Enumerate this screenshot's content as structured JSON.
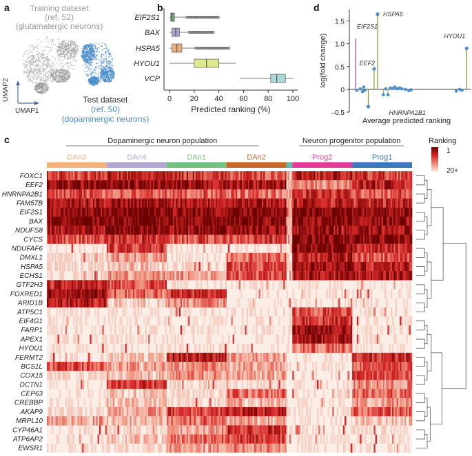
{
  "panel_letters": {
    "a": "a",
    "b": "b",
    "c": "c",
    "d": "d"
  },
  "colors": {
    "gray": "#9a9a9a",
    "blue": "#4a8ecb",
    "box_green": "#6aab78",
    "box_purple": "#a9a2cf",
    "box_orange": "#e8b07e",
    "box_yellow": "#dde88c",
    "box_cyan": "#a9dad9",
    "hsp_line": "#8a9a3a",
    "eif_line": "#e0457b",
    "heat_high": "#6b0000",
    "heat_low": "#faeee6"
  },
  "panel_a": {
    "training_label": "Training dataset",
    "training_ref": "(ref. 52)",
    "training_desc": "(glutamatergic neurons)",
    "test_label": "Test dataset",
    "test_ref": "(ref. 50)",
    "test_desc": "(dopaminergic neurons)",
    "umap1": "UMAP1",
    "umap2": "UMAP2"
  },
  "chart_data": [
    {
      "type": "box",
      "panel": "b",
      "title": "",
      "xlabel": "Predicted ranking (%)",
      "xlim": [
        -5,
        105
      ],
      "xticks": [
        "0",
        "20",
        "40",
        "60",
        "80",
        "100"
      ],
      "tick_values": [
        0,
        20,
        40,
        60,
        80,
        100
      ],
      "genes": [
        {
          "name": "EIF2S1",
          "min": 0,
          "q1": 1,
          "median": 2,
          "q3": 4,
          "max": 14,
          "outliers_to": 40
        },
        {
          "name": "BAX",
          "min": 0,
          "q1": 2,
          "median": 5,
          "q3": 8,
          "max": 16,
          "outliers_to": 36
        },
        {
          "name": "HSPA5",
          "min": 0,
          "q1": 2,
          "median": 6,
          "q3": 10,
          "max": 21,
          "outliers_to": 49
        },
        {
          "name": "HYOU1",
          "min": 0,
          "q1": 20,
          "median": 30,
          "q3": 40,
          "max": 54,
          "outliers_to": null
        },
        {
          "name": "VCP",
          "min": 57,
          "q1": 82,
          "median": 87,
          "q3": 94,
          "max": 100,
          "outliers_to": 57
        }
      ]
    },
    {
      "type": "scatter",
      "panel": "d",
      "xlabel": "Average predicted ranking",
      "ylabel": "log(fold change)",
      "ylim": [
        -0.5,
        1.75
      ],
      "yticks": [
        "1.5",
        "1.0",
        "0.5",
        "0",
        "–0.5"
      ],
      "ytick_values": [
        1.5,
        1.0,
        0.5,
        0,
        -0.5
      ],
      "xlim": [
        0,
        100
      ],
      "labeled_points": [
        {
          "gene": "EIF2S1",
          "x": 3,
          "y": 1.12
        },
        {
          "gene": "EEF2",
          "x": 19,
          "y": 0.45
        },
        {
          "gene": "HSPA5",
          "x": 22,
          "y": 1.65
        },
        {
          "gene": "HNRNPA2B1",
          "x": 14,
          "y": -0.38
        },
        {
          "gene": "HYOU1",
          "x": 99,
          "y": 0.9
        }
      ],
      "other_points": [
        [
          4,
          -0.02
        ],
        [
          7,
          0.01
        ],
        [
          9,
          -0.05
        ],
        [
          10,
          0.05
        ],
        [
          11,
          -0.02
        ],
        [
          27,
          -0.12
        ],
        [
          29,
          0.01
        ],
        [
          31,
          -0.12
        ],
        [
          33,
          0.03
        ],
        [
          35,
          0.02
        ],
        [
          37,
          0.05
        ],
        [
          39,
          0.01
        ],
        [
          41,
          0.03
        ],
        [
          43,
          0.01
        ],
        [
          46,
          0.0
        ],
        [
          49,
          -0.03
        ],
        [
          51,
          -0.01
        ],
        [
          90,
          -0.04
        ],
        [
          93,
          0.0
        ],
        [
          95,
          -0.02
        ]
      ]
    },
    {
      "type": "heatmap",
      "panel": "c",
      "colorbar_title": "Ranking",
      "colorbar_top": "1",
      "colorbar_bottom": "20+",
      "groups": [
        {
          "label": "Dopaminergic neuron population",
          "clusters": [
            "DAn3",
            "DAn4",
            "DAn1",
            "DAn2"
          ]
        },
        {
          "label": "Neuron progenitor population",
          "clusters": [
            "Prog2",
            "Prog1"
          ]
        }
      ],
      "clusters": [
        {
          "name": "DAn3",
          "color": "#f2b27c"
        },
        {
          "name": "DAn4",
          "color": "#b3a6d2"
        },
        {
          "name": "DAn1",
          "color": "#74c083"
        },
        {
          "name": "DAn2",
          "color": "#c8692c"
        },
        {
          "name": "Prog2",
          "color": "#e43a9a"
        },
        {
          "name": "Prog1",
          "color": "#3b78be"
        }
      ],
      "cluster_units": [
        20,
        20,
        20,
        20,
        2,
        20,
        20
      ],
      "genes": [
        "FOXC1",
        "EEF2",
        "HNRNPA2B1",
        "FAM57B",
        "EIF2S1",
        "BAX",
        "NDUFS8",
        "CYCS",
        "NDUFAF6",
        "DMXL1",
        "HSPA5",
        "ECHS1",
        "GTF2H3",
        "FOXRED1",
        "ARID1B",
        "ATP5C1",
        "EIF4G1",
        "FARP1",
        "APEX1",
        "HYOU1",
        "FERMT2",
        "BCS1L",
        "COX15",
        "DCTN1",
        "CEP63",
        "CREBBP",
        "AKAP9",
        "MRPL10",
        "CYP46A1",
        "ATP6AP2",
        "EWSR1"
      ],
      "intensity": [
        [
          0.6,
          0.7,
          0.65,
          0.55,
          0.2,
          0.75,
          0.6
        ],
        [
          0.85,
          0.85,
          0.8,
          0.8,
          0.3,
          0.35,
          0.75
        ],
        [
          0.55,
          0.5,
          0.5,
          0.45,
          0.2,
          0.65,
          0.55
        ],
        [
          0.75,
          0.85,
          0.8,
          0.8,
          0.3,
          0.75,
          0.7
        ],
        [
          0.9,
          0.95,
          0.9,
          0.95,
          0.4,
          0.95,
          0.9
        ],
        [
          0.9,
          0.95,
          0.9,
          0.9,
          0.4,
          0.9,
          0.85
        ],
        [
          0.8,
          0.9,
          0.85,
          0.85,
          0.35,
          0.8,
          0.8
        ],
        [
          0.55,
          0.65,
          0.55,
          0.6,
          0.3,
          0.9,
          0.9
        ],
        [
          0.05,
          0.6,
          0.05,
          0.05,
          0.05,
          0.9,
          0.7
        ],
        [
          0.1,
          0.3,
          0.05,
          0.45,
          0.1,
          0.75,
          0.5
        ],
        [
          0.1,
          0.2,
          0.1,
          0.6,
          0.1,
          0.85,
          0.75
        ],
        [
          0.1,
          0.3,
          0.3,
          0.55,
          0.1,
          0.8,
          0.8
        ],
        [
          0.7,
          0.55,
          0.05,
          0.05,
          0.05,
          0.05,
          0.05
        ],
        [
          0.85,
          0.5,
          0.65,
          0.05,
          0.05,
          0.05,
          0.05
        ],
        [
          0.75,
          0.15,
          0.35,
          0.05,
          0.05,
          0.05,
          0.05
        ],
        [
          0.05,
          0.05,
          0.05,
          0.05,
          0.05,
          0.55,
          0.05
        ],
        [
          0.05,
          0.05,
          0.05,
          0.05,
          0.05,
          0.65,
          0.05
        ],
        [
          0.05,
          0.05,
          0.05,
          0.05,
          0.05,
          0.85,
          0.05
        ],
        [
          0.05,
          0.05,
          0.05,
          0.05,
          0.05,
          0.8,
          0.05
        ],
        [
          0.05,
          0.05,
          0.05,
          0.05,
          0.05,
          0.45,
          0.05
        ],
        [
          0.05,
          0.15,
          0.75,
          0.3,
          0.05,
          0.05,
          0.65
        ],
        [
          0.55,
          0.3,
          0.35,
          0.3,
          0.05,
          0.05,
          0.55
        ],
        [
          0.1,
          0.2,
          0.35,
          0.25,
          0.05,
          0.05,
          0.55
        ],
        [
          0.05,
          0.6,
          0.1,
          0.1,
          0.05,
          0.05,
          0.35
        ],
        [
          0.05,
          0.15,
          0.1,
          0.45,
          0.05,
          0.05,
          0.45
        ],
        [
          0.05,
          0.15,
          0.1,
          0.25,
          0.05,
          0.05,
          0.3
        ],
        [
          0.1,
          0.3,
          0.6,
          0.75,
          0.05,
          0.05,
          0.5
        ],
        [
          0.3,
          0.2,
          0.45,
          0.3,
          0.05,
          0.05,
          0.15
        ],
        [
          0.05,
          0.1,
          0.3,
          0.7,
          0.05,
          0.05,
          0.1
        ],
        [
          0.05,
          0.15,
          0.45,
          0.6,
          0.05,
          0.05,
          0.05
        ],
        [
          0.05,
          0.1,
          0.3,
          0.4,
          0.05,
          0.05,
          0.05
        ]
      ]
    }
  ]
}
